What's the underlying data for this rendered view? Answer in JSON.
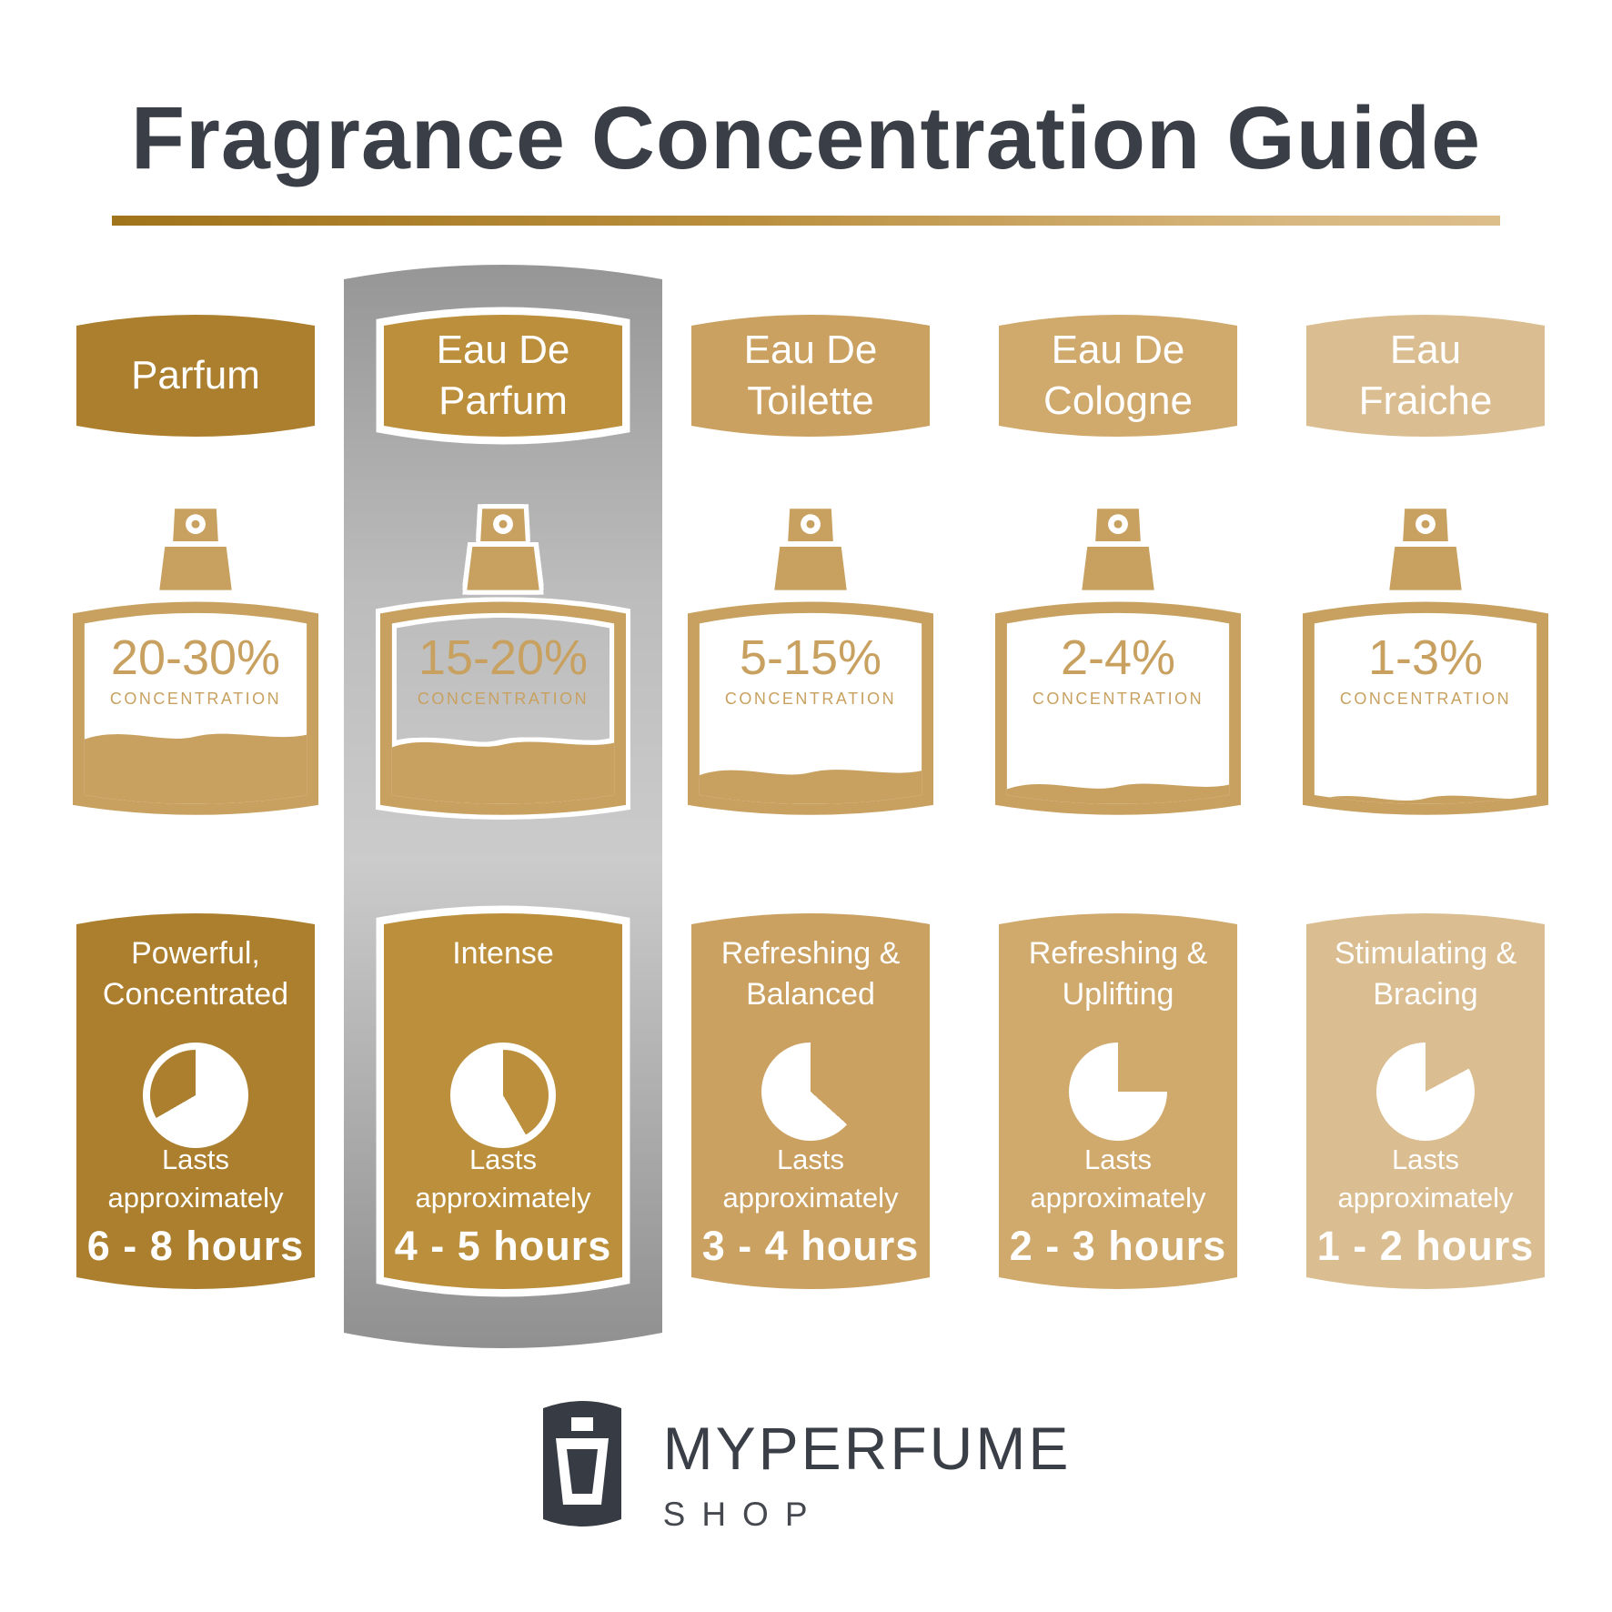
{
  "title": {
    "text": "Fragrance Concentration Guide"
  },
  "columns": [
    {
      "name": "Parfum",
      "color": "#AB7F2E",
      "concentration": "20-30%",
      "concentration_label": "CONCENTRATION",
      "fill_percent": 37,
      "description": "Powerful,\nConcentrated",
      "lasts_label": "Lasts\napproximately",
      "hours": "6 - 8 hours",
      "pie": {
        "gold_start": 240,
        "gold_end": 360,
        "ring": true
      }
    },
    {
      "name": "Eau De\nParfum",
      "color": "#BC8F3C",
      "concentration": "15-20%",
      "concentration_label": "CONCENTRATION",
      "fill_percent": 33,
      "description": "Intense",
      "lasts_label": "Lasts\napproximately",
      "hours": "4 - 5 hours",
      "pie": {
        "gold_start": 0,
        "gold_end": 150,
        "ring": true
      }
    },
    {
      "name": "Eau De\nToilette",
      "color": "#CAA161",
      "concentration": "5-15%",
      "concentration_label": "CONCENTRATION",
      "fill_percent": 19,
      "description": "Refreshing &\nBalanced",
      "lasts_label": "Lasts\napproximately",
      "hours": "3 - 4 hours",
      "pie": {
        "gold_start": 0,
        "gold_end": 132,
        "ring": false
      }
    },
    {
      "name": "Eau De\nCologne",
      "color": "#D0A96C",
      "concentration": "2-4%",
      "concentration_label": "CONCENTRATION",
      "fill_percent": 12,
      "description": "Refreshing &\nUplifting",
      "lasts_label": "Lasts\napproximately",
      "hours": "2 - 3 hours",
      "pie": {
        "gold_start": 0,
        "gold_end": 90,
        "ring": false
      }
    },
    {
      "name": "Eau\nFraiche",
      "color": "#DABD90",
      "concentration": "1-3%",
      "concentration_label": "CONCENTRATION",
      "fill_percent": 6,
      "description": "Stimulating &\nBracing",
      "lasts_label": "Lasts\napproximately",
      "hours": "1 - 2 hours",
      "pie": {
        "gold_start": 0,
        "gold_end": 62,
        "ring": false
      }
    }
  ],
  "colors": {
    "title_text": "#3A3E46",
    "bottle_gold": "#C8A160",
    "highlight_silver": "#BDBDBD",
    "underline_left": "#A0741B",
    "underline_right": "#DCBE8B",
    "logo_dark": "#373B43"
  },
  "footer": {
    "brand": "MYPERFUME",
    "sub": "SHOP"
  }
}
